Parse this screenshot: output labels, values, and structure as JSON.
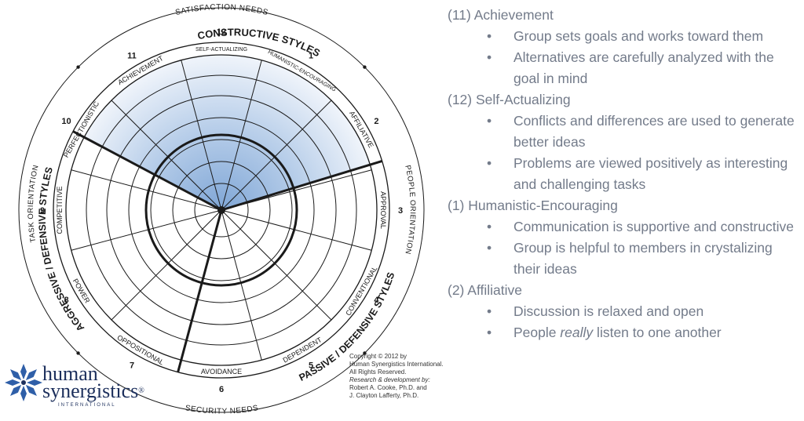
{
  "diagram": {
    "top_label": "SATISFACTION NEEDS",
    "bottom_label": "SECURITY NEEDS",
    "left_label": "TASK ORIENTATION",
    "right_label": "PEOPLE ORIENTATION",
    "cluster_top": "CONSTRUCTIVE STYLES",
    "cluster_left": "AGGRESSIVE / DEFENSIVE STYLES",
    "cluster_right": "PASSIVE / DEFENSIVE STYLES",
    "sectors": [
      {
        "num": "1",
        "name": "HUMANISTIC-ENCOURAGING"
      },
      {
        "num": "2",
        "name": "AFFILIATIVE"
      },
      {
        "num": "3",
        "name": "APPROVAL"
      },
      {
        "num": "4",
        "name": "CONVENTIONAL"
      },
      {
        "num": "5",
        "name": "DEPENDENT"
      },
      {
        "num": "6",
        "name": "AVOIDANCE"
      },
      {
        "num": "7",
        "name": "OPPOSITIONAL"
      },
      {
        "num": "8",
        "name": "POWER"
      },
      {
        "num": "9",
        "name": "COMPETITIVE"
      },
      {
        "num": "10",
        "name": "PERFECTIONISTIC"
      },
      {
        "num": "11",
        "name": "ACHIEVEMENT"
      },
      {
        "num": "12",
        "name": "SELF-ACTUALIZING"
      }
    ],
    "colors": {
      "shade_inner": "#7fa6d6",
      "shade_outer": "#e4ecf6",
      "lines": "#1a1a1a"
    }
  },
  "copyright": {
    "line1": "Copyright © 2012 by",
    "line2": "Human Synergistics International.",
    "line3": "All Rights Reserved.",
    "line4": "Research & development by:",
    "line5": "Robert A. Cooke, Ph.D. and",
    "line6": "J. Clayton Lafferty, Ph.D."
  },
  "logo": {
    "word1": "human",
    "word2": "synergistics",
    "reg": "®",
    "word3": "INTERNATIONAL"
  },
  "styles": [
    {
      "heading": "(11) Achievement",
      "bullets": [
        "Group sets goals and works toward them",
        "Alternatives are carefully analyzed with the goal in mind"
      ]
    },
    {
      "heading": "(12) Self-Actualizing",
      "bullets": [
        "Conflicts and differences are used to generate better ideas",
        "Problems are viewed positively as interesting and challenging tasks"
      ]
    },
    {
      "heading": "(1) Humanistic-Encouraging",
      "bullets": [
        "Communication is supportive and constructive",
        "Group is helpful to members in crystalizing their ideas"
      ]
    },
    {
      "heading": "(2) Affiliative",
      "bullets": [
        "Discussion is relaxed and open"
      ],
      "rich_bullet": {
        "pre": "People ",
        "em": "really",
        "post": " listen to one another"
      }
    }
  ],
  "bullet_glyph": "•"
}
